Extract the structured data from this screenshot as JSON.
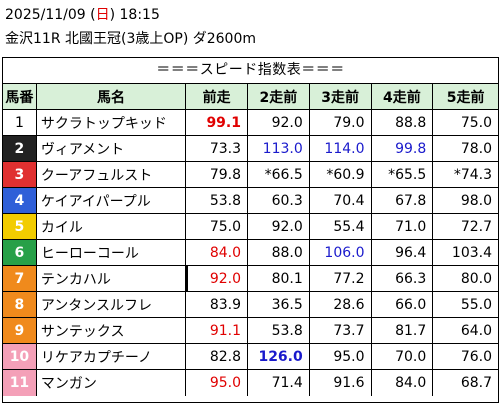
{
  "header": {
    "date_prefix": "2025/11/09 (",
    "day": "日",
    "date_suffix": ") 18:15",
    "race": "金沢11R 北國王冠(3歳上OP) ダ2600m"
  },
  "table": {
    "title": "＝＝＝スピード指数表＝＝＝",
    "columns": [
      "馬番",
      "馬名",
      "前走",
      "2走前",
      "3走前",
      "4走前",
      "5走前"
    ],
    "rows": [
      {
        "no": "1",
        "bg": "#ffffff",
        "fg": "#000000",
        "name": "サクラトップキッド",
        "v": [
          "99.1",
          "92.0",
          "79.0",
          "88.8",
          "75.0"
        ],
        "c": [
          "#e00000",
          "#000",
          "#000",
          "#000",
          "#000"
        ],
        "b": [
          true,
          false,
          false,
          false,
          false
        ]
      },
      {
        "no": "2",
        "bg": "#222222",
        "fg": "#ffffff",
        "name": "ヴィアメント",
        "v": [
          "73.3",
          "113.0",
          "114.0",
          "99.8",
          "78.0"
        ],
        "c": [
          "#000",
          "#1a1acc",
          "#1a1acc",
          "#1a1acc",
          "#000"
        ],
        "b": [
          false,
          false,
          false,
          false,
          false
        ]
      },
      {
        "no": "3",
        "bg": "#e03030",
        "fg": "#ffffff",
        "name": "クーアフュルスト",
        "v": [
          "79.8",
          "*66.5",
          "*60.9",
          "*65.5",
          "*74.3"
        ],
        "c": [
          "#000",
          "#000",
          "#000",
          "#000",
          "#000"
        ],
        "b": [
          false,
          false,
          false,
          false,
          false
        ]
      },
      {
        "no": "4",
        "bg": "#2f5fd8",
        "fg": "#ffffff",
        "name": "ケイアイパープル",
        "v": [
          "53.8",
          "60.3",
          "70.4",
          "67.8",
          "98.0"
        ],
        "c": [
          "#000",
          "#000",
          "#000",
          "#000",
          "#000"
        ],
        "b": [
          false,
          false,
          false,
          false,
          false
        ]
      },
      {
        "no": "5",
        "bg": "#f2cc00",
        "fg": "#ffffff",
        "name": "カイル",
        "v": [
          "75.0",
          "92.0",
          "55.4",
          "71.0",
          "72.7"
        ],
        "c": [
          "#000",
          "#000",
          "#000",
          "#000",
          "#000"
        ],
        "b": [
          false,
          false,
          false,
          false,
          false
        ]
      },
      {
        "no": "6",
        "bg": "#27a048",
        "fg": "#ffffff",
        "name": "ヒーローコール",
        "v": [
          "84.0",
          "88.0",
          "106.0",
          "96.4",
          "103.4"
        ],
        "c": [
          "#e00000",
          "#000",
          "#1a1acc",
          "#000",
          "#000"
        ],
        "b": [
          false,
          false,
          false,
          false,
          false
        ]
      },
      {
        "no": "7",
        "bg": "#f08a1c",
        "fg": "#ffffff",
        "name": "テンカハル",
        "v": [
          "92.0",
          "80.1",
          "77.2",
          "66.3",
          "80.0"
        ],
        "c": [
          "#e00000",
          "#000",
          "#000",
          "#000",
          "#000"
        ],
        "b": [
          false,
          false,
          false,
          false,
          false
        ]
      },
      {
        "no": "8",
        "bg": "#f08a1c",
        "fg": "#ffffff",
        "name": "アンタンスルフレ",
        "v": [
          "83.9",
          "36.5",
          "28.6",
          "66.0",
          "55.0"
        ],
        "c": [
          "#000",
          "#000",
          "#000",
          "#000",
          "#000"
        ],
        "b": [
          false,
          false,
          false,
          false,
          false
        ]
      },
      {
        "no": "9",
        "bg": "#f08a1c",
        "fg": "#ffffff",
        "name": "サンテックス",
        "v": [
          "91.1",
          "53.8",
          "73.7",
          "81.7",
          "64.0"
        ],
        "c": [
          "#e00000",
          "#000",
          "#000",
          "#000",
          "#000"
        ],
        "b": [
          false,
          false,
          false,
          false,
          false
        ]
      },
      {
        "no": "10",
        "bg": "#f4a0b8",
        "fg": "#ffffff",
        "name": "リケアカプチーノ",
        "v": [
          "82.8",
          "126.0",
          "95.0",
          "70.0",
          "76.0"
        ],
        "c": [
          "#000",
          "#1a1acc",
          "#000",
          "#000",
          "#000"
        ],
        "b": [
          false,
          true,
          false,
          false,
          false
        ]
      },
      {
        "no": "11",
        "bg": "#f4a0b8",
        "fg": "#ffffff",
        "name": "マンガン",
        "v": [
          "95.0",
          "71.4",
          "91.6",
          "84.0",
          "68.7"
        ],
        "c": [
          "#e00000",
          "#000",
          "#000",
          "#000",
          "#000"
        ],
        "b": [
          false,
          false,
          false,
          false,
          false
        ]
      }
    ]
  }
}
